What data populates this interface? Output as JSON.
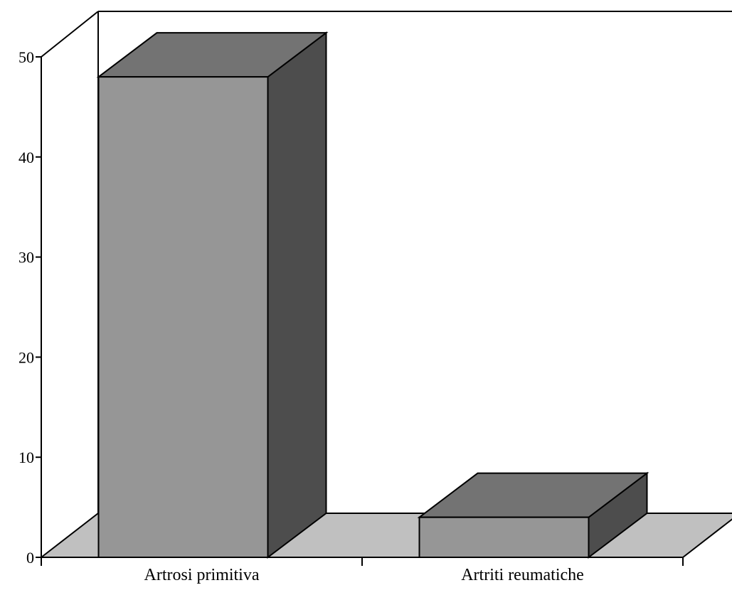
{
  "chart_data": {
    "type": "bar",
    "categories": [
      "Artrosi primitiva",
      "Artriti reumatiche"
    ],
    "values": [
      48,
      4
    ],
    "ylim": [
      0,
      50
    ],
    "yticks": [
      0,
      10,
      20,
      30,
      40,
      50
    ],
    "grid": false,
    "style": "3d",
    "colors": {
      "bar_front": "#969696",
      "bar_top": "#737373",
      "bar_side": "#4d4d4d",
      "floor": "#c0c0c0"
    }
  }
}
